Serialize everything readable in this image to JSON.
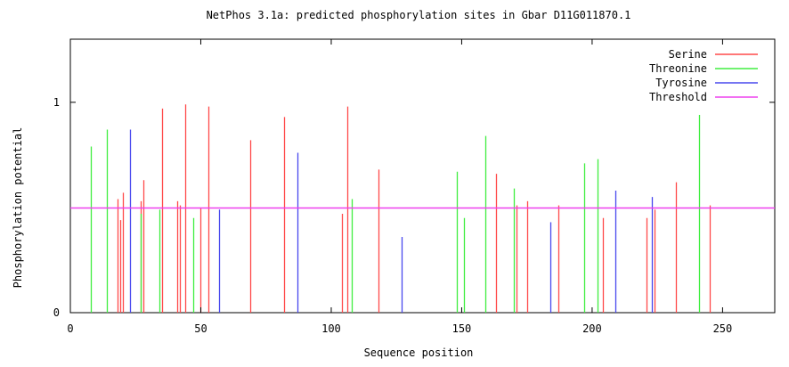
{
  "chart_data": {
    "type": "bar",
    "title": "NetPhos 3.1a: predicted phosphorylation sites in Gbar D11G011870.1",
    "xlabel": "Sequence position",
    "ylabel": "Phosphorylation potential",
    "xlim": [
      0,
      270
    ],
    "ylim": [
      0,
      1.3
    ],
    "xticks": [
      0,
      50,
      100,
      150,
      200,
      250
    ],
    "yticks": [
      0,
      1
    ],
    "threshold": 0.5,
    "legend_position": "top-right",
    "series": [
      {
        "name": "Serine",
        "color": "#ff4a4a",
        "points": [
          [
            18,
            0.54
          ],
          [
            19,
            0.44
          ],
          [
            20,
            0.57
          ],
          [
            27,
            0.53
          ],
          [
            28,
            0.63
          ],
          [
            35,
            0.97
          ],
          [
            41,
            0.53
          ],
          [
            42,
            0.51
          ],
          [
            44,
            0.99
          ],
          [
            50,
            0.5
          ],
          [
            53,
            0.98
          ],
          [
            69,
            0.82
          ],
          [
            82,
            0.93
          ],
          [
            104,
            0.47
          ],
          [
            106,
            0.98
          ],
          [
            118,
            0.68
          ],
          [
            163,
            0.66
          ],
          [
            171,
            0.51
          ],
          [
            175,
            0.53
          ],
          [
            187,
            0.51
          ],
          [
            204,
            0.45
          ],
          [
            221,
            0.45
          ],
          [
            224,
            0.49
          ],
          [
            232,
            0.62
          ],
          [
            245,
            0.51
          ]
        ]
      },
      {
        "name": "Threonine",
        "color": "#40ee40",
        "points": [
          [
            8,
            0.79
          ],
          [
            14,
            0.87
          ],
          [
            27,
            0.47
          ],
          [
            34,
            0.49
          ],
          [
            47,
            0.45
          ],
          [
            108,
            0.54
          ],
          [
            148,
            0.67
          ],
          [
            151,
            0.45
          ],
          [
            159,
            0.84
          ],
          [
            170,
            0.59
          ],
          [
            197,
            0.71
          ],
          [
            202,
            0.73
          ],
          [
            241,
            0.94
          ]
        ]
      },
      {
        "name": "Tyrosine",
        "color": "#4848ee",
        "points": [
          [
            23,
            0.87
          ],
          [
            57,
            0.49
          ],
          [
            87,
            0.76
          ],
          [
            127,
            0.36
          ],
          [
            184,
            0.43
          ],
          [
            209,
            0.58
          ],
          [
            223,
            0.55
          ]
        ]
      },
      {
        "name": "Threshold",
        "color": "#ee40ee"
      }
    ]
  }
}
